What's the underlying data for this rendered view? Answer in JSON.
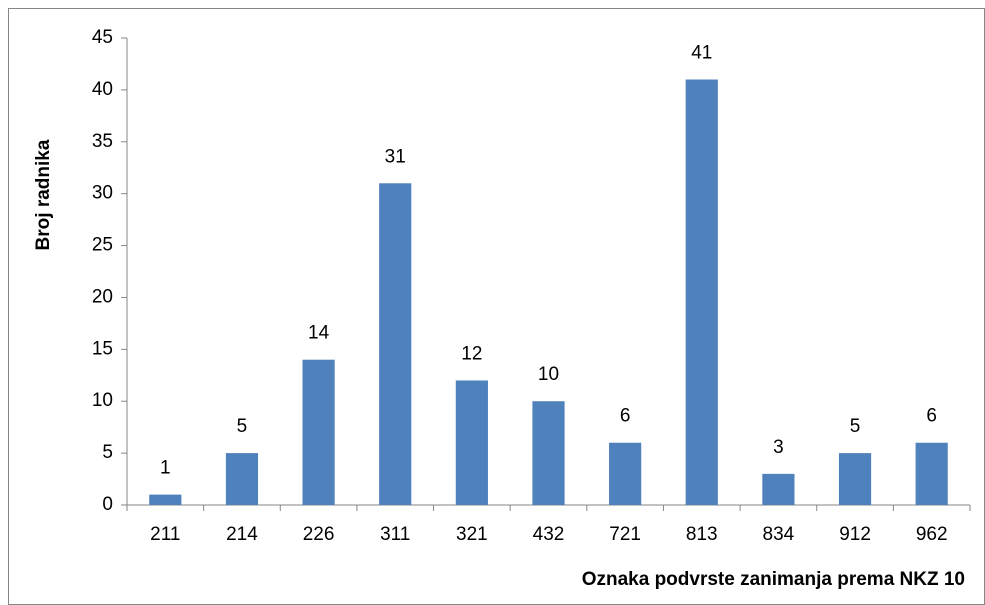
{
  "chart_data": {
    "type": "bar",
    "xlabel": "Oznaka podvrste zanimanja prema NKZ 10",
    "ylabel": "Broj radnika",
    "categories": [
      "211",
      "214",
      "226",
      "311",
      "321",
      "432",
      "721",
      "813",
      "834",
      "912",
      "962"
    ],
    "values": [
      1,
      5,
      14,
      31,
      12,
      10,
      6,
      41,
      3,
      5,
      6
    ],
    "color": "#4f81bd",
    "ylim": [
      0,
      45
    ],
    "yticks": [
      0,
      5,
      10,
      15,
      20,
      25,
      30,
      35,
      40,
      45
    ],
    "grid": false
  }
}
